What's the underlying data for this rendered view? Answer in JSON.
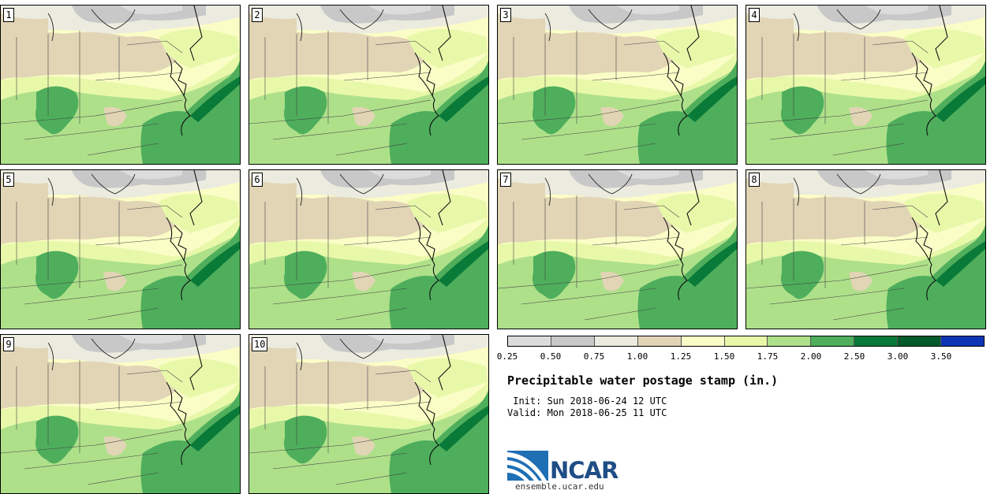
{
  "panels": [
    {
      "label": "1"
    },
    {
      "label": "2"
    },
    {
      "label": "3"
    },
    {
      "label": "4"
    },
    {
      "label": "5"
    },
    {
      "label": "6"
    },
    {
      "label": "7"
    },
    {
      "label": "8"
    },
    {
      "label": "9"
    },
    {
      "label": "10"
    }
  ],
  "legend": {
    "colors": [
      "#dcdcdc",
      "#c8c8c8",
      "#ecebdf",
      "#e1d5b5",
      "#fbfdc6",
      "#e8f8a9",
      "#aee08a",
      "#4eae5c",
      "#0a7a38",
      "#035a2a",
      "#0c34b4"
    ],
    "ticks": [
      "0.25",
      "0.50",
      "0.75",
      "1.00",
      "1.25",
      "1.50",
      "1.75",
      "2.00",
      "2.50",
      "3.00",
      "3.50"
    ]
  },
  "info": {
    "title": "Precipitable water postage stamp (in.)",
    "init": " Init: Sun 2018-06-24 12 UTC",
    "valid": "Valid: Mon 2018-06-25 11 UTC"
  },
  "logo": {
    "name": "NCAR",
    "url": "ensemble.ucar.edu",
    "brand_color": "#1f4e86"
  }
}
